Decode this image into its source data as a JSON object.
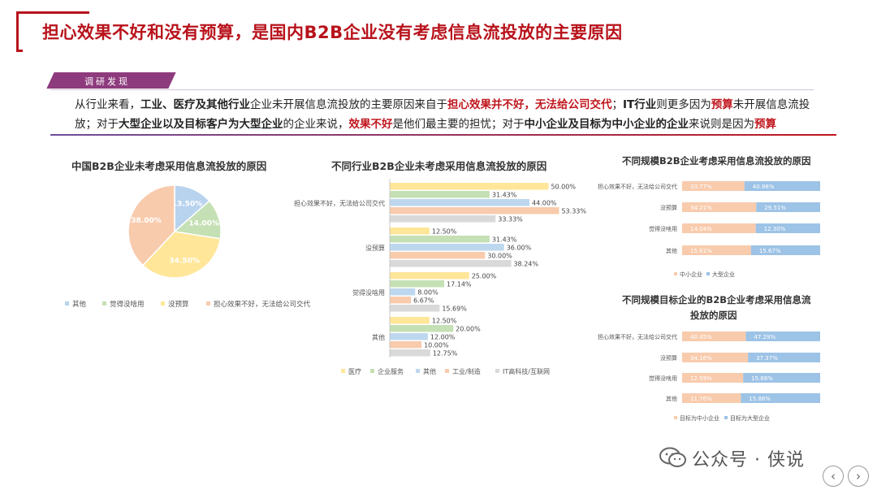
{
  "title": "担心效果不好和没有预算，是国内B2B企业没有考虑信息流投放的主要原因",
  "section_label": "调研发现",
  "intro_segments": [
    {
      "text": "从行业来看，",
      "style": "normal"
    },
    {
      "text": "工业、医疗及其他行业",
      "style": "bold"
    },
    {
      "text": "企业未开展信息流投放的主要原因来自于",
      "style": "normal"
    },
    {
      "text": "担心效果并不好，无法给公司交代",
      "style": "red"
    },
    {
      "text": "；",
      "style": "normal"
    },
    {
      "text": "IT行业",
      "style": "bold"
    },
    {
      "text": "则更多因为",
      "style": "normal"
    },
    {
      "text": "预算",
      "style": "red"
    },
    {
      "text": "未开展信息流投放；对于",
      "style": "normal"
    },
    {
      "text": "大型企业以及目标客户为大型企业",
      "style": "bold"
    },
    {
      "text": "的企业来说，",
      "style": "normal"
    },
    {
      "text": "效果不好",
      "style": "red"
    },
    {
      "text": "是他们最主要的担忧；对于",
      "style": "normal"
    },
    {
      "text": "中小企业及目标为中小企业的企业",
      "style": "bold"
    },
    {
      "text": "来说则是因为",
      "style": "normal"
    },
    {
      "text": "预算",
      "style": "red"
    }
  ],
  "watermark": "公众号 · 侠说",
  "nav": {
    "prev": "‹",
    "next": "›"
  },
  "chart_data": [
    {
      "id": "pie",
      "type": "pie",
      "title": "中国B2B企业未考虑采用信息流投放的原因",
      "slices": [
        {
          "name": "其他",
          "value": 13.5,
          "label": "13.50%",
          "color": "#b8d3ee"
        },
        {
          "name": "觉得没啥用",
          "value": 14.0,
          "label": "14.00%",
          "color": "#c5e0b4"
        },
        {
          "name": "没预算",
          "value": 34.5,
          "label": "34.50%",
          "color": "#ffe699"
        },
        {
          "name": "担心效果不好，无法给公司交代",
          "value": 38.0,
          "label": "38.00%",
          "color": "#f8cbad"
        }
      ],
      "legend": [
        "其他",
        "觉得没啥用",
        "没预算",
        "担心效果不好，无法给公司交代"
      ],
      "legend_placement": "bottom"
    },
    {
      "id": "industry",
      "type": "bar",
      "orientation": "horizontal",
      "title": "不同行业B2B企业未考虑采用信息流投放的原因",
      "categories": [
        "担心效果不好，无法给公司交代",
        "没预算",
        "觉得没啥用",
        "其他"
      ],
      "series": [
        {
          "name": "医疗",
          "color": "#ffe699",
          "values": [
            50.0,
            12.5,
            25.0,
            12.5
          ],
          "labels": [
            "50.00%",
            "12.50%",
            "25.00%",
            "12.50%"
          ]
        },
        {
          "name": "企业服务",
          "color": "#c5e0b4",
          "values": [
            31.43,
            31.43,
            17.14,
            20.0
          ],
          "labels": [
            "31.43%",
            "31.43%",
            "17.14%",
            "20.00%"
          ]
        },
        {
          "name": "其他",
          "color": "#bdd7ee",
          "values": [
            44.0,
            36.0,
            8.0,
            12.0
          ],
          "labels": [
            "44.00%",
            "36.00%",
            "8.00%",
            "12.00%"
          ]
        },
        {
          "name": "工业/制造",
          "color": "#f8cbad",
          "values": [
            53.33,
            30.0,
            6.67,
            10.0
          ],
          "labels": [
            "53.33%",
            "30.00%",
            "6.67%",
            "10.00%"
          ]
        },
        {
          "name": "IT高科技/互联网",
          "color": "#d9d9d9",
          "values": [
            33.33,
            38.24,
            15.69,
            12.75
          ],
          "labels": [
            "33.33%",
            "38.24%",
            "15.69%",
            "12.75%"
          ]
        }
      ],
      "xlim": [
        0,
        55
      ],
      "legend_placement": "bottom"
    },
    {
      "id": "size",
      "type": "bar",
      "orientation": "horizontal",
      "stacked": true,
      "title": "不同规模B2B企业考虑采用信息流投放的原因",
      "categories": [
        "担心效果不好，无法给公司交代",
        "没预算",
        "觉得没啥用",
        "其他"
      ],
      "series": [
        {
          "name": "中小企业",
          "color": "#f8cbad",
          "values": [
            33.77,
            34.21,
            14.04,
            15.61
          ],
          "labels": [
            "33.77%",
            "34.21%",
            "14.04%",
            "15.61%"
          ]
        },
        {
          "name": "大型企业",
          "color": "#9dc3e6",
          "values": [
            40.98,
            29.51,
            12.3,
            15.67
          ],
          "labels": [
            "40.98%",
            "29.51%",
            "12.30%",
            "15.67%"
          ]
        }
      ],
      "legend_placement": "bottom"
    },
    {
      "id": "target",
      "type": "bar",
      "orientation": "horizontal",
      "stacked": true,
      "title_lines": [
        "不同规模目标企业的B2B企业考虑采用信息流",
        "投放的原因"
      ],
      "categories": [
        "担心效果不好，无法给公司交代",
        "没预算",
        "觉得没啥用",
        "其他"
      ],
      "series": [
        {
          "name": "目标为中小企业",
          "color": "#f8cbad",
          "values": [
            40.45,
            34.16,
            12.59,
            11.76
          ],
          "labels": [
            "40.45%",
            "34.16%",
            "12.59%",
            "11.76%"
          ]
        },
        {
          "name": "目标为大型企业",
          "color": "#9dc3e6",
          "values": [
            47.29,
            37.37,
            15.88,
            15.88
          ],
          "labels": [
            "47.29%",
            "37.37%",
            "15.88%",
            "15.88%"
          ]
        }
      ],
      "legend_placement": "bottom"
    }
  ]
}
